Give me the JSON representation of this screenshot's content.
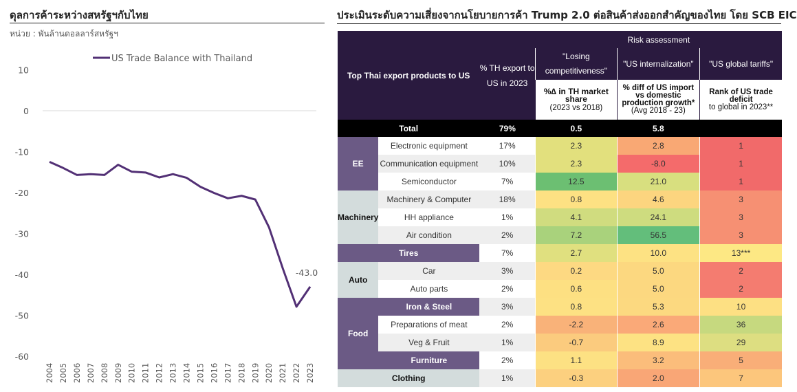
{
  "left": {
    "title": "ดุลการค้าระหว่างสหรัฐฯกับไทย",
    "unit": "หน่วย : พันล้านดอลลาร์สหรัฐฯ"
  },
  "chart_data": {
    "type": "line",
    "title": "ดุลการค้าระหว่างสหรัฐฯกับไทย",
    "ylabel": "หน่วย : พันล้านดอลลาร์สหรัฐฯ",
    "xlabel": "",
    "x": [
      "2004",
      "2005",
      "2006",
      "2007",
      "2008",
      "2009",
      "2010",
      "2011",
      "2012",
      "2013",
      "2014",
      "2015",
      "2016",
      "2017",
      "2018",
      "2019",
      "2020",
      "2021",
      "2022",
      "2023"
    ],
    "series": [
      {
        "name": "US Trade Balance with Thailand",
        "values": [
          -12.5,
          -14.0,
          -15.7,
          -15.5,
          -15.7,
          -13.2,
          -14.9,
          -15.1,
          -16.3,
          -15.5,
          -16.4,
          -18.6,
          -20.1,
          -21.4,
          -20.8,
          -21.7,
          -28.5,
          -38.5,
          -47.9,
          -43.0
        ]
      }
    ],
    "ylim": [
      -60,
      10
    ],
    "yticks": [
      10,
      0,
      -10,
      -20,
      -30,
      -40,
      -50,
      -60
    ],
    "annotation": {
      "label": "-43.0",
      "index": 19
    },
    "legend": "top",
    "grid": false,
    "color": "#523075"
  },
  "right": {
    "title": "ประเมินระดับความเสี่ยงจากนโยบายการค้า Trump 2.0 ต่อสินค้าส่งออกสำคัญของไทย โดย SCB EIC",
    "header": {
      "products": "Top Thai export products to US",
      "share": "% TH export to US in 2023",
      "risk": "Risk assessment",
      "col1": "\"Losing competitiveness\"",
      "col2": "\"US internalization\"",
      "col3": "\"US global tariffs\"",
      "sub1_main": "%∆ in TH market share",
      "sub1_note": "(2023 vs 2018)",
      "sub2_main": "% diff of US import vs domestic production growth*",
      "sub2_note": "(Avg 2018 - 23)",
      "sub3_main": "Rank of US trade deficit",
      "sub3_note": "to global in 2023**"
    },
    "total": {
      "label": "Total",
      "share": "79%",
      "v1": "0.5",
      "v2": "5.8",
      "v3": ""
    },
    "groups": {
      "ee": "EE",
      "machinery": "Machinery",
      "auto": "Auto",
      "food": "Food"
    },
    "rows": [
      {
        "group": "ee",
        "product": "Electronic equipment",
        "share": "17%",
        "v1": "2.3",
        "v2": "2.8",
        "v3": "1",
        "c1": "#e2e07d",
        "c2": "#f9a874",
        "c3": "#f16a6a"
      },
      {
        "group": "ee",
        "product": "Communication equipment",
        "share": "10%",
        "v1": "2.3",
        "v2": "-8.0",
        "v3": "1",
        "c1": "#e2e07d",
        "c2": "#f46b6b",
        "c3": "#f16a6a"
      },
      {
        "group": "ee",
        "product": "Semiconductor",
        "share": "7%",
        "v1": "12.5",
        "v2": "21.0",
        "v3": "1",
        "c1": "#6cbf72",
        "c2": "#d8df7f",
        "c3": "#f16a6a"
      },
      {
        "group": "machinery",
        "product": "Machinery & Computer",
        "share": "18%",
        "v1": "0.8",
        "v2": "4.6",
        "v3": "3",
        "c1": "#fde183",
        "c2": "#fcd57f",
        "c3": "#f69073"
      },
      {
        "group": "machinery",
        "product": "HH appliance",
        "share": "1%",
        "v1": "4.1",
        "v2": "24.1",
        "v3": "3",
        "c1": "#d0dc7f",
        "c2": "#cedc7f",
        "c3": "#f69073"
      },
      {
        "group": "machinery",
        "product": "Air condition",
        "share": "2%",
        "v1": "7.2",
        "v2": "56.5",
        "v3": "3",
        "c1": "#a9d27c",
        "c2": "#63be7b",
        "c3": "#f69073"
      },
      {
        "group": "tires",
        "product": "Tires",
        "share": "7%",
        "v1": "2.7",
        "v2": "10.0",
        "v3": "13***",
        "c1": "#e0e07f",
        "c2": "#fde283",
        "c3": "#fde884"
      },
      {
        "group": "auto",
        "product": "Car",
        "share": "3%",
        "v1": "0.2",
        "v2": "5.0",
        "v3": "2",
        "c1": "#fdd982",
        "c2": "#fcd880",
        "c3": "#f47c70"
      },
      {
        "group": "auto",
        "product": "Auto parts",
        "share": "2%",
        "v1": "0.6",
        "v2": "5.0",
        "v3": "2",
        "c1": "#fde082",
        "c2": "#fcd880",
        "c3": "#f47c70"
      },
      {
        "group": "iron",
        "product": "Iron & Steel",
        "share": "3%",
        "v1": "0.8",
        "v2": "5.3",
        "v3": "10",
        "c1": "#fde183",
        "c2": "#fcd980",
        "c3": "#fde083"
      },
      {
        "group": "food",
        "product": "Preparations of meat",
        "share": "2%",
        "v1": "-2.2",
        "v2": "2.6",
        "v3": "36",
        "c1": "#f9b279",
        "c2": "#faa978",
        "c3": "#c6d97f"
      },
      {
        "group": "food",
        "product": "Veg & Fruit",
        "share": "1%",
        "v1": "-0.7",
        "v2": "8.9",
        "v3": "29",
        "c1": "#fbcb7e",
        "c2": "#fde283",
        "c3": "#ddde81"
      },
      {
        "group": "furniture",
        "product": "Furniture",
        "share": "2%",
        "v1": "1.1",
        "v2": "3.2",
        "v3": "5",
        "c1": "#fde183",
        "c2": "#fbbd7b",
        "c3": "#f9ae78"
      },
      {
        "group": "clothing",
        "product": "Clothing",
        "share": "1%",
        "v1": "-0.3",
        "v2": "2.0",
        "v3": "7",
        "c1": "#fcd07f",
        "c2": "#f9a676",
        "c3": "#fcc67c"
      }
    ]
  }
}
